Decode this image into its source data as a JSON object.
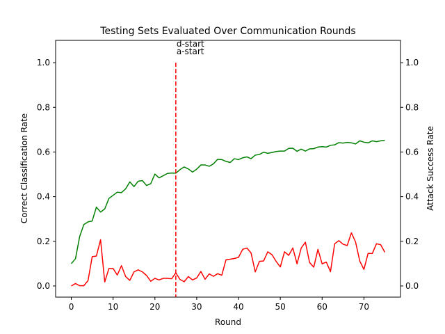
{
  "chart_data": {
    "type": "line",
    "title": "Testing Sets Evaluated Over Communication Rounds",
    "xlabel": "Round",
    "ylabel_left": "Correct Classification Rate",
    "ylabel_right": "Attack Success Rate",
    "xlim": [
      -3.75,
      78.75
    ],
    "ylim": [
      -0.05,
      1.1
    ],
    "xticks": [
      "0",
      "10",
      "20",
      "30",
      "40",
      "50",
      "60",
      "70"
    ],
    "yticks": [
      "0.0",
      "0.2",
      "0.4",
      "0.6",
      "0.8",
      "1.0"
    ],
    "grid": false,
    "colors": {
      "left_axis": "#008000",
      "right_axis": "#ff0000",
      "marker": "#ff0000"
    },
    "series": [
      {
        "axis": "left",
        "color": "#008000",
        "x": [
          0,
          1,
          2,
          3,
          4,
          5,
          6,
          7,
          8,
          9,
          10,
          11,
          12,
          13,
          14,
          15,
          16,
          17,
          18,
          19,
          20,
          21,
          22,
          23,
          24,
          25,
          26,
          27,
          28,
          29,
          30,
          31,
          32,
          33,
          34,
          35,
          36,
          37,
          38,
          39,
          40,
          41,
          42,
          43,
          44,
          45,
          46,
          47,
          48,
          49,
          50,
          51,
          52,
          53,
          54,
          55,
          56,
          57,
          58,
          59,
          60,
          61,
          62,
          63,
          64,
          65,
          66,
          67,
          68,
          69,
          70,
          71,
          72,
          73,
          74,
          75
        ],
        "values": [
          0.1,
          0.122,
          0.221,
          0.275,
          0.287,
          0.291,
          0.353,
          0.331,
          0.345,
          0.392,
          0.406,
          0.42,
          0.418,
          0.435,
          0.466,
          0.445,
          0.469,
          0.472,
          0.45,
          0.458,
          0.501,
          0.484,
          0.494,
          0.504,
          0.506,
          0.505,
          0.521,
          0.533,
          0.524,
          0.51,
          0.523,
          0.542,
          0.542,
          0.536,
          0.547,
          0.567,
          0.566,
          0.558,
          0.553,
          0.57,
          0.566,
          0.574,
          0.578,
          0.57,
          0.586,
          0.589,
          0.599,
          0.594,
          0.598,
          0.602,
          0.604,
          0.604,
          0.616,
          0.617,
          0.603,
          0.613,
          0.604,
          0.614,
          0.615,
          0.622,
          0.624,
          0.622,
          0.63,
          0.632,
          0.642,
          0.64,
          0.643,
          0.641,
          0.636,
          0.65,
          0.644,
          0.641,
          0.65,
          0.646,
          0.65,
          0.652
        ]
      },
      {
        "axis": "right",
        "color": "#ff0000",
        "x": [
          0,
          1,
          2,
          3,
          4,
          5,
          6,
          7,
          8,
          9,
          10,
          11,
          12,
          13,
          14,
          15,
          16,
          17,
          18,
          19,
          20,
          21,
          22,
          23,
          24,
          25,
          26,
          27,
          28,
          29,
          30,
          31,
          32,
          33,
          34,
          35,
          36,
          37,
          38,
          39,
          40,
          41,
          42,
          43,
          44,
          45,
          46,
          47,
          48,
          49,
          50,
          51,
          52,
          53,
          54,
          55,
          56,
          57,
          58,
          59,
          60,
          61,
          62,
          63,
          64,
          65,
          66,
          67,
          68,
          69,
          70,
          71,
          72,
          73,
          74,
          75
        ],
        "values": [
          0.0,
          0.011,
          0.001,
          0.001,
          0.024,
          0.131,
          0.134,
          0.207,
          0.018,
          0.078,
          0.078,
          0.049,
          0.091,
          0.042,
          0.025,
          0.063,
          0.072,
          0.063,
          0.047,
          0.021,
          0.034,
          0.027,
          0.034,
          0.034,
          0.032,
          0.059,
          0.029,
          0.019,
          0.042,
          0.027,
          0.036,
          0.065,
          0.03,
          0.054,
          0.043,
          0.055,
          0.048,
          0.117,
          0.12,
          0.123,
          0.128,
          0.164,
          0.17,
          0.148,
          0.063,
          0.11,
          0.112,
          0.153,
          0.14,
          0.11,
          0.085,
          0.153,
          0.137,
          0.17,
          0.099,
          0.17,
          0.196,
          0.105,
          0.084,
          0.164,
          0.099,
          0.107,
          0.064,
          0.189,
          0.203,
          0.187,
          0.181,
          0.238,
          0.197,
          0.112,
          0.074,
          0.146,
          0.145,
          0.189,
          0.185,
          0.151
        ]
      }
    ],
    "markers": [
      {
        "x": 25,
        "y_top": 1.0,
        "color": "#ff0000",
        "labels": [
          "d-start",
          "a-start"
        ]
      }
    ]
  }
}
